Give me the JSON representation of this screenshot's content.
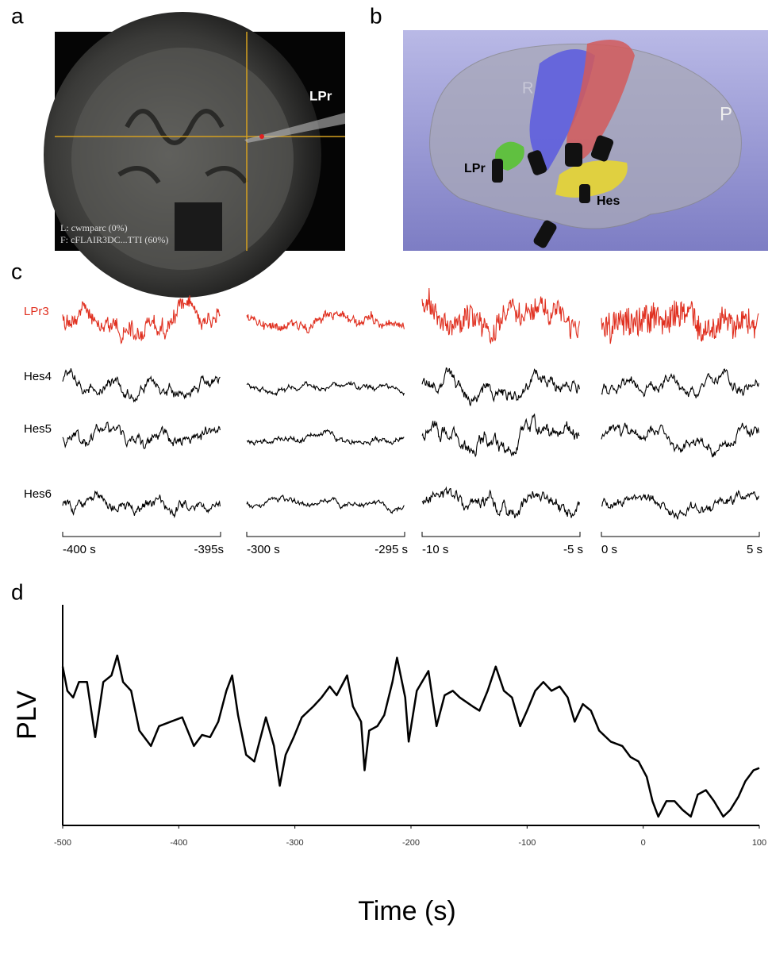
{
  "panel_labels": [
    "a",
    "b",
    "c",
    "d"
  ],
  "panel_a": {
    "probe": "LPr",
    "overlay": [
      "L: cwmparc (0%)",
      "F: cFLAIR3DC...TTI (60%)"
    ]
  },
  "panel_b": {
    "labels": [
      "R",
      "P",
      "LPr",
      "Hes"
    ]
  },
  "panel_c": {
    "channels": [
      "LPr3",
      "Hes4",
      "Hes5",
      "Hes6"
    ],
    "windows": [
      [
        "-400 s",
        "-395s"
      ],
      [
        "-300 s",
        "-295 s"
      ],
      [
        "-10 s",
        "-5 s"
      ],
      [
        "0 s",
        "5 s"
      ]
    ]
  },
  "chart_data": {
    "type": "line",
    "xlabel": "Time (s)",
    "ylabel": "PLV",
    "x": [
      -500,
      -496,
      -491,
      -486,
      -479,
      -472,
      -465,
      -458,
      -453,
      -448,
      -441,
      -434,
      -424,
      -417,
      -407,
      -397,
      -387,
      -380,
      -373,
      -366,
      -359,
      -354,
      -349,
      -342,
      -335,
      -325,
      -318,
      -313,
      -308,
      -301,
      -294,
      -284,
      -277,
      -270,
      -264,
      -255,
      -250,
      -243,
      -240,
      -236,
      -229,
      -223,
      -216,
      -212,
      -205,
      -202,
      -195,
      -185,
      -178,
      -171,
      -164,
      -158,
      -147,
      -141,
      -134,
      -127,
      -120,
      -113,
      -106,
      -100,
      -93,
      -86,
      -79,
      -72,
      -65,
      -59,
      -52,
      -45,
      -38,
      -28,
      -18,
      -11,
      -4,
      3,
      8,
      13,
      20,
      27,
      34,
      41,
      47,
      54,
      61,
      69,
      75,
      82,
      88,
      95,
      100
    ],
    "series": [
      {
        "color": "#000000",
        "values": [
          0.72,
          0.61,
          0.58,
          0.65,
          0.65,
          0.4,
          0.65,
          0.68,
          0.77,
          0.65,
          0.61,
          0.43,
          0.36,
          0.45,
          0.47,
          0.49,
          0.36,
          0.41,
          0.4,
          0.47,
          0.61,
          0.68,
          0.5,
          0.32,
          0.29,
          0.49,
          0.36,
          0.18,
          0.32,
          0.4,
          0.49,
          0.54,
          0.58,
          0.63,
          0.59,
          0.68,
          0.54,
          0.47,
          0.25,
          0.43,
          0.45,
          0.5,
          0.65,
          0.76,
          0.58,
          0.38,
          0.61,
          0.7,
          0.45,
          0.59,
          0.61,
          0.58,
          0.54,
          0.52,
          0.61,
          0.72,
          0.61,
          0.58,
          0.45,
          0.52,
          0.61,
          0.65,
          0.61,
          0.63,
          0.58,
          0.47,
          0.55,
          0.52,
          0.43,
          0.38,
          0.36,
          0.31,
          0.29,
          0.22,
          0.11,
          0.04,
          0.11,
          0.11,
          0.07,
          0.04,
          0.14,
          0.16,
          0.11,
          0.04,
          0.07,
          0.13,
          0.2,
          0.25,
          0.26
        ]
      }
    ],
    "xlim": [
      -500,
      100
    ],
    "ylim": [
      0,
      1
    ],
    "xticks": [
      -500,
      -400,
      -300,
      -200,
      -100,
      0,
      100
    ]
  }
}
